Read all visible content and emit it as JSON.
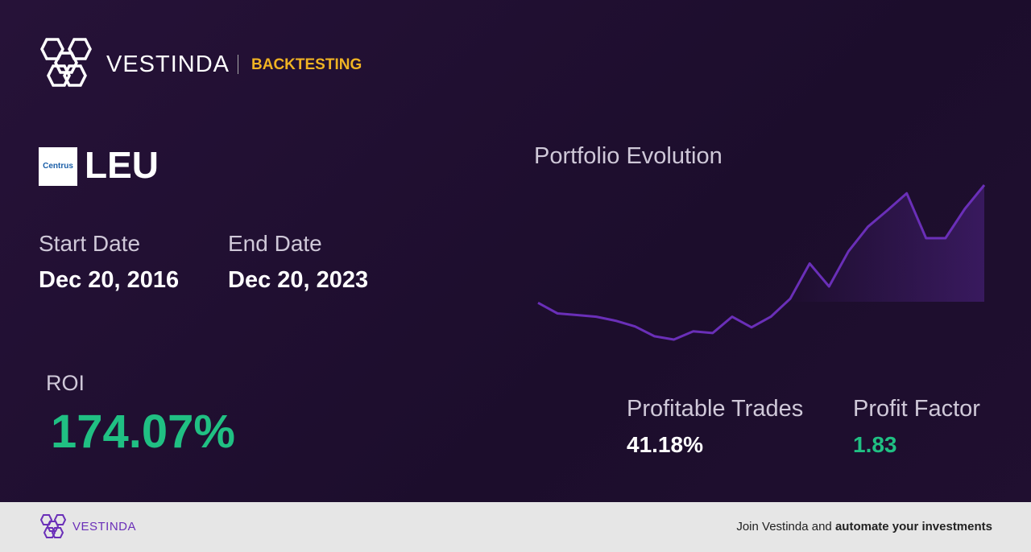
{
  "header": {
    "brand": "VESTINDA",
    "section": "BACKTESTING"
  },
  "asset": {
    "logo_text": "Centrus",
    "ticker": "LEU"
  },
  "dates": {
    "start_label": "Start Date",
    "start_value": "Dec 20, 2016",
    "end_label": "End Date",
    "end_value": "Dec 20, 2023"
  },
  "roi": {
    "label": "ROI",
    "value": "174.07%"
  },
  "chart": {
    "type": "line",
    "title": "Portfolio Evolution",
    "color": "#6a2fb8",
    "values": [
      100,
      84.4,
      82,
      79.6,
      73.6,
      65.2,
      50.8,
      46,
      58,
      55.6,
      79.6,
      64,
      79.6,
      106,
      157.6,
      124,
      175.6,
      211.6,
      235.6,
      260.8,
      194.8,
      194.8,
      238,
      272.8
    ]
  },
  "stats": {
    "profitable_label": "Profitable Trades",
    "profitable_value": "41.18%",
    "factor_label": "Profit Factor",
    "factor_value": "1.83"
  },
  "footer": {
    "brand": "VESTINDA",
    "text_plain": "Join Vestinda and",
    "text_bold": "automate your investments"
  }
}
